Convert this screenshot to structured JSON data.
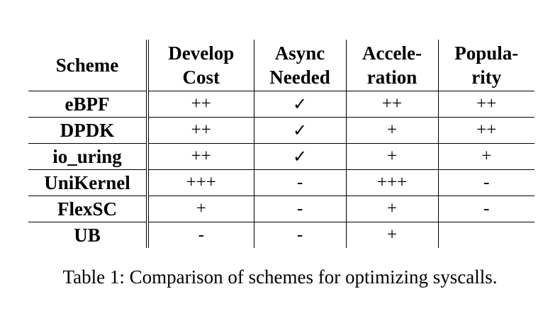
{
  "table": {
    "headers": [
      [
        "Scheme"
      ],
      [
        "Develop",
        "Cost"
      ],
      [
        "Async",
        "Needed"
      ],
      [
        "Accele-",
        "ration"
      ],
      [
        "Popula-",
        "rity"
      ]
    ],
    "rows": [
      {
        "scheme": "eBPF",
        "cost": "++",
        "async": "✓",
        "acceleration": "++",
        "popularity": "++"
      },
      {
        "scheme": "DPDK",
        "cost": "++",
        "async": "✓",
        "acceleration": "+",
        "popularity": "++"
      },
      {
        "scheme": "io_uring",
        "cost": "++",
        "async": "✓",
        "acceleration": "+",
        "popularity": "+"
      },
      {
        "scheme": "UniKernel",
        "cost": "+++",
        "async": "-",
        "acceleration": "+++",
        "popularity": "-"
      },
      {
        "scheme": "FlexSC",
        "cost": "+",
        "async": "-",
        "acceleration": "+",
        "popularity": "-"
      },
      {
        "scheme": "UB",
        "cost": "-",
        "async": "-",
        "acceleration": "+",
        "popularity": ""
      }
    ]
  },
  "caption": "Table 1: Comparison of schemes for optimizing syscalls."
}
